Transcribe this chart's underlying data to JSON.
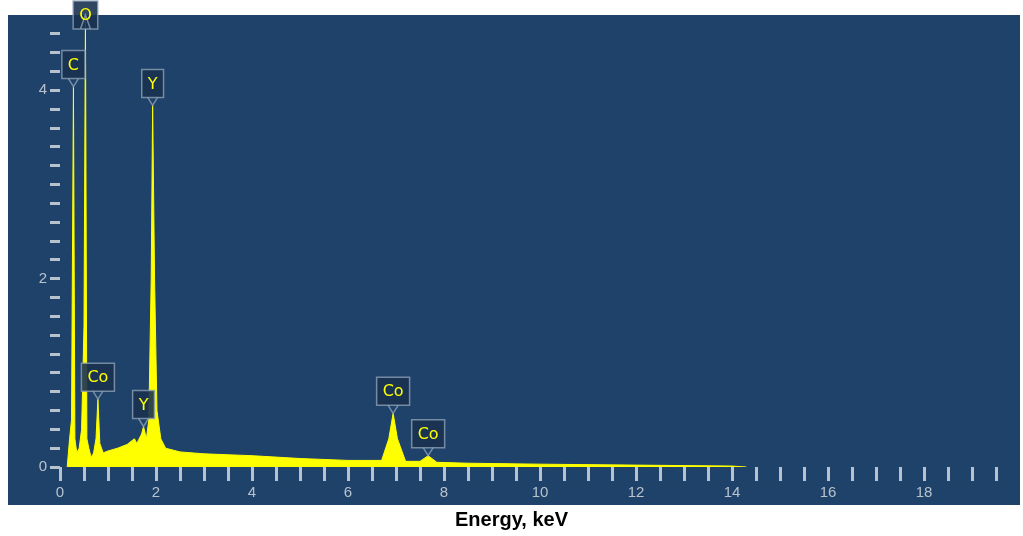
{
  "chart_data": {
    "type": "area",
    "xlabel": "Energy, keV",
    "xlim": [
      0,
      20
    ],
    "ylim": [
      0,
      4.8
    ],
    "xticks": [
      0,
      {
        "value": 0.5,
        "label": null
      },
      {
        "value": 1,
        "label": null
      },
      {
        "value": 1.5,
        "label": null
      },
      2,
      {
        "value": 2.5,
        "label": null
      },
      {
        "value": 3,
        "label": null
      },
      {
        "value": 3.5,
        "label": null
      },
      4,
      {
        "value": 4.5,
        "label": null
      },
      {
        "value": 5,
        "label": null
      },
      {
        "value": 5.5,
        "label": null
      },
      6,
      {
        "value": 6.5,
        "label": null
      },
      {
        "value": 7,
        "label": null
      },
      {
        "value": 7.5,
        "label": null
      },
      8,
      {
        "value": 8.5,
        "label": null
      },
      {
        "value": 9,
        "label": null
      },
      {
        "value": 9.5,
        "label": null
      },
      10,
      {
        "value": 10.5,
        "label": null
      },
      {
        "value": 11,
        "label": null
      },
      {
        "value": 11.5,
        "label": null
      },
      12,
      {
        "value": 12.5,
        "label": null
      },
      {
        "value": 13,
        "label": null
      },
      {
        "value": 13.5,
        "label": null
      },
      14,
      {
        "value": 14.5,
        "label": null
      },
      {
        "value": 15,
        "label": null
      },
      {
        "value": 15.5,
        "label": null
      },
      16,
      {
        "value": 16.5,
        "label": null
      },
      {
        "value": 17,
        "label": null
      },
      {
        "value": 17.5,
        "label": null
      },
      18,
      {
        "value": 18.5,
        "label": null
      },
      {
        "value": 19,
        "label": null
      },
      {
        "value": 19.5,
        "label": null
      }
    ],
    "yticks": [
      0,
      {
        "value": 0.2,
        "label": null
      },
      {
        "value": 0.4,
        "label": null
      },
      {
        "value": 0.6,
        "label": null
      },
      {
        "value": 0.8,
        "label": null
      },
      {
        "value": 1,
        "label": null
      },
      {
        "value": 1.2,
        "label": null
      },
      {
        "value": 1.4,
        "label": null
      },
      {
        "value": 1.6,
        "label": null
      },
      {
        "value": 1.8,
        "label": null
      },
      2,
      {
        "value": 2.2,
        "label": null
      },
      {
        "value": 2.4,
        "label": null
      },
      {
        "value": 2.6,
        "label": null
      },
      {
        "value": 2.8,
        "label": null
      },
      {
        "value": 3,
        "label": null
      },
      {
        "value": 3.2,
        "label": null
      },
      {
        "value": 3.4,
        "label": null
      },
      {
        "value": 3.6,
        "label": null
      },
      {
        "value": 3.8,
        "label": null
      },
      4,
      {
        "value": 4.2,
        "label": null
      },
      {
        "value": 4.4,
        "label": null
      },
      {
        "value": 4.6,
        "label": null
      }
    ],
    "series": [
      {
        "color": "#ffff00",
        "x": [
          0.15,
          0.2,
          0.24,
          0.28,
          0.31,
          0.35,
          0.4,
          0.45,
          0.5,
          0.53,
          0.56,
          0.6,
          0.65,
          0.7,
          0.75,
          0.79,
          0.83,
          0.9,
          1.0,
          1.2,
          1.4,
          1.55,
          1.6,
          1.7,
          1.74,
          1.8,
          1.85,
          1.9,
          1.93,
          1.97,
          2.02,
          2.1,
          2.2,
          2.5,
          3,
          4,
          5,
          6,
          6.7,
          6.85,
          6.94,
          7.03,
          7.2,
          7.5,
          7.67,
          7.85,
          8.5,
          10,
          12,
          14,
          14.3
        ],
        "values": [
          0,
          0.3,
          0.5,
          4.04,
          0.3,
          0.15,
          0.2,
          0.4,
          1.5,
          4.8,
          0.3,
          0.2,
          0.1,
          0.15,
          0.3,
          0.72,
          0.25,
          0.15,
          0.17,
          0.2,
          0.24,
          0.3,
          0.25,
          0.35,
          0.43,
          0.3,
          0.5,
          2.0,
          3.84,
          2.0,
          0.6,
          0.3,
          0.2,
          0.16,
          0.14,
          0.12,
          0.09,
          0.07,
          0.07,
          0.3,
          0.57,
          0.3,
          0.06,
          0.06,
          0.12,
          0.05,
          0.04,
          0.03,
          0.02,
          0.01,
          0
        ]
      }
    ],
    "annotations": [
      {
        "text": "C",
        "x": 0.28,
        "y": 4.04
      },
      {
        "text": "O",
        "x": 0.53,
        "y": 4.8
      },
      {
        "text": "Co",
        "x": 0.79,
        "y": 0.72
      },
      {
        "text": "Y",
        "x": 1.74,
        "y": 0.43
      },
      {
        "text": "Y",
        "x": 1.93,
        "y": 3.84
      },
      {
        "text": "Co",
        "x": 6.94,
        "y": 0.57
      },
      {
        "text": "Co",
        "x": 7.67,
        "y": 0.12
      }
    ],
    "grid": false,
    "legend": false,
    "marker": "none",
    "line_style": "solid"
  }
}
